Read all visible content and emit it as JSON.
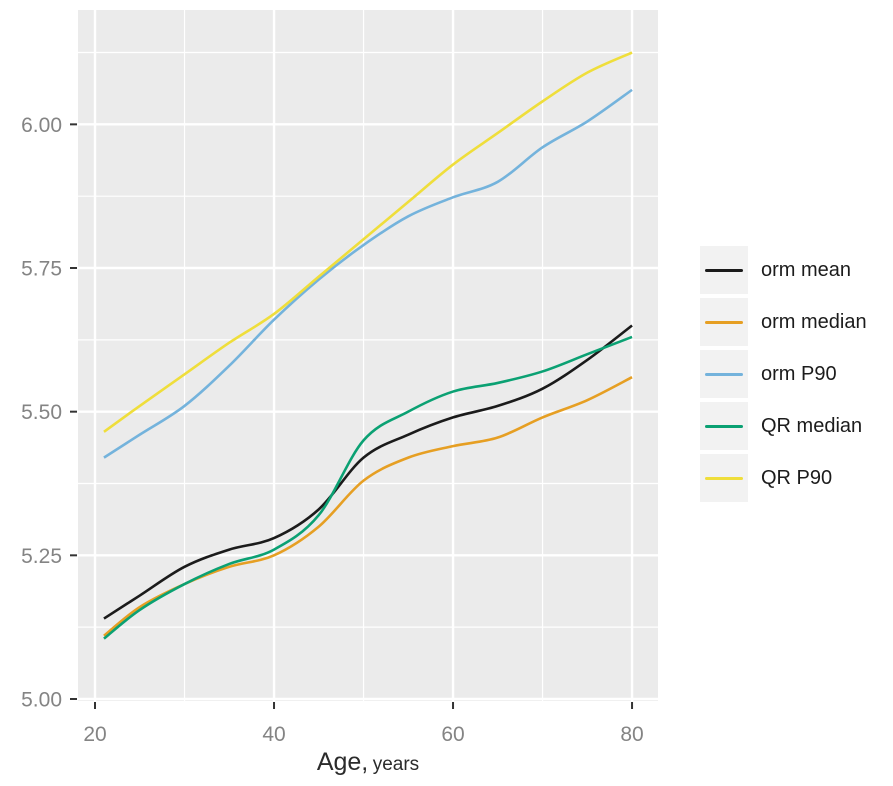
{
  "chart_data": {
    "type": "line",
    "title": "",
    "xlabel_main": "Age,",
    "xlabel_sub": "years",
    "ylabel": "",
    "legend_position": "right",
    "panel_bg": "#EBEBEB",
    "grid_color": "#FFFFFF",
    "tick_color": "#333333",
    "tick_label_color": "#848484",
    "legend_key_bg": "#F2F2F2",
    "xlim": [
      18.1,
      82.9
    ],
    "ylim": [
      4.9965,
      6.199
    ],
    "x_major_ticks": [
      {
        "value": 20,
        "label": "20"
      },
      {
        "value": 40,
        "label": "40"
      },
      {
        "value": 60,
        "label": "60"
      },
      {
        "value": 80,
        "label": "80"
      }
    ],
    "x_minor_ticks": [
      30,
      50,
      70
    ],
    "y_major_ticks": [
      {
        "value": 5.0,
        "label": "5.00"
      },
      {
        "value": 5.25,
        "label": "5.25"
      },
      {
        "value": 5.5,
        "label": "5.50"
      },
      {
        "value": 5.75,
        "label": "5.75"
      },
      {
        "value": 6.0,
        "label": "6.00"
      }
    ],
    "y_minor_ticks": [
      5.125,
      5.375,
      5.625,
      5.875,
      6.125
    ],
    "x": [
      21,
      25,
      30,
      35,
      40,
      45,
      50,
      55,
      60,
      65,
      70,
      75,
      80
    ],
    "series": [
      {
        "name": "orm mean",
        "color": "#1B1B1B",
        "values": [
          5.14,
          5.18,
          5.23,
          5.26,
          5.28,
          5.33,
          5.42,
          5.46,
          5.49,
          5.51,
          5.54,
          5.59,
          5.65
        ]
      },
      {
        "name": "orm median",
        "color": "#E69F23",
        "values": [
          5.11,
          5.16,
          5.2,
          5.23,
          5.25,
          5.3,
          5.38,
          5.42,
          5.44,
          5.455,
          5.49,
          5.52,
          5.56
        ]
      },
      {
        "name": "orm P90",
        "color": "#74B3DC",
        "values": [
          5.42,
          5.46,
          5.51,
          5.58,
          5.66,
          5.73,
          5.79,
          5.84,
          5.873,
          5.9,
          5.96,
          6.005,
          6.06
        ]
      },
      {
        "name": "QR median",
        "color": "#0BA173",
        "values": [
          5.105,
          5.155,
          5.2,
          5.235,
          5.26,
          5.32,
          5.45,
          5.5,
          5.535,
          5.55,
          5.57,
          5.6,
          5.63
        ]
      },
      {
        "name": "QR P90",
        "color": "#EFDE3B",
        "values": [
          5.465,
          5.51,
          5.565,
          5.62,
          5.67,
          5.735,
          5.8,
          5.865,
          5.93,
          5.985,
          6.04,
          6.09,
          6.125
        ]
      }
    ]
  }
}
